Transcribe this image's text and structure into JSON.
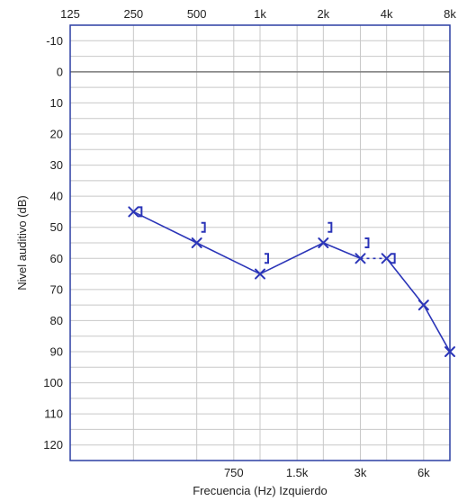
{
  "chart_data": {
    "type": "line",
    "xlabel": "Frecuencia (Hz) Izquierdo",
    "ylabel": "Nivel auditivo (dB)",
    "x_scale": "log",
    "x_top_ticks": [
      {
        "value": 125,
        "label": "125"
      },
      {
        "value": 250,
        "label": "250"
      },
      {
        "value": 500,
        "label": "500"
      },
      {
        "value": 1000,
        "label": "1k"
      },
      {
        "value": 2000,
        "label": "2k"
      },
      {
        "value": 4000,
        "label": "4k"
      },
      {
        "value": 8000,
        "label": "8k"
      }
    ],
    "x_bottom_ticks": [
      {
        "value": 750,
        "label": "750"
      },
      {
        "value": 1500,
        "label": "1.5k"
      },
      {
        "value": 3000,
        "label": "3k"
      },
      {
        "value": 6000,
        "label": "6k"
      }
    ],
    "xlim": [
      125,
      8000
    ],
    "y_ticks": [
      "-10",
      "0",
      "10",
      "20",
      "30",
      "40",
      "50",
      "60",
      "70",
      "80",
      "90",
      "100",
      "110",
      "120"
    ],
    "ylim": [
      -15,
      125
    ],
    "y_inverted": true,
    "grid": true,
    "series": [
      {
        "marker": "x",
        "connected": true,
        "dashed_segment": [
          3000,
          4000
        ],
        "points": [
          {
            "x": 250,
            "y": 45
          },
          {
            "x": 500,
            "y": 55
          },
          {
            "x": 1000,
            "y": 65
          },
          {
            "x": 2000,
            "y": 55
          },
          {
            "x": 3000,
            "y": 60
          },
          {
            "x": 4000,
            "y": 60
          },
          {
            "x": 6000,
            "y": 75
          },
          {
            "x": 8000,
            "y": 90
          }
        ]
      },
      {
        "marker": "bracket",
        "connected": false,
        "points": [
          {
            "x": 250,
            "y": 45
          },
          {
            "x": 500,
            "y": 50
          },
          {
            "x": 1000,
            "y": 60
          },
          {
            "x": 2000,
            "y": 50
          },
          {
            "x": 3000,
            "y": 55
          },
          {
            "x": 4000,
            "y": 60
          }
        ]
      }
    ],
    "colors": {
      "series": "#2b35b8",
      "frame": "#2b3ea3",
      "grid": "#c8c8c8"
    }
  }
}
